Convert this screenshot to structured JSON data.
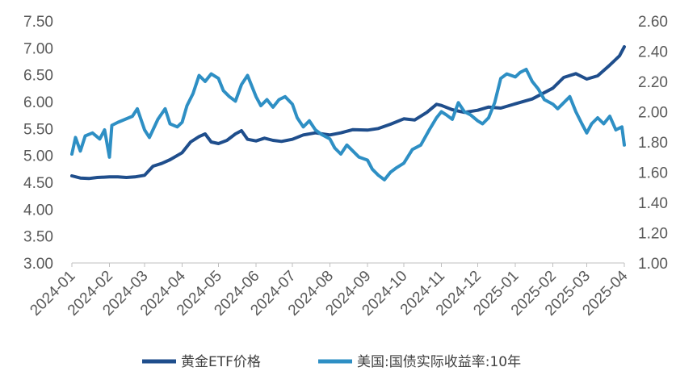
{
  "chart_data": {
    "type": "line",
    "title": "",
    "x": [
      "2024-01",
      "2024-02",
      "2024-03",
      "2024-04",
      "2024-05",
      "2024-06",
      "2024-07",
      "2024-08",
      "2024-09",
      "2024-10",
      "2024-11",
      "2024-12",
      "2025-01",
      "2025-02",
      "2025-03",
      "2025-04"
    ],
    "ylim_left": [
      3.0,
      7.5
    ],
    "yticks_left": [
      "3.00",
      "3.50",
      "4.00",
      "4.50",
      "5.00",
      "5.50",
      "6.00",
      "6.50",
      "7.00",
      "7.50"
    ],
    "ylim_right": [
      1.0,
      2.6
    ],
    "yticks_right": [
      "1.00",
      "1.20",
      "1.40",
      "1.60",
      "1.80",
      "2.00",
      "2.20",
      "2.40",
      "2.60"
    ],
    "grid": false,
    "legend_position": "bottom",
    "series": [
      {
        "name": "黄金ETF价格",
        "axis": "left",
        "color": "#1F4E8C",
        "points": [
          [
            "2024-01",
            4.62
          ],
          [
            "2024-01-08",
            4.58
          ],
          [
            "2024-01-15",
            4.57
          ],
          [
            "2024-01-22",
            4.59
          ],
          [
            "2024-02",
            4.6
          ],
          [
            "2024-02-08",
            4.6
          ],
          [
            "2024-02-15",
            4.59
          ],
          [
            "2024-02-22",
            4.6
          ],
          [
            "2024-03",
            4.63
          ],
          [
            "2024-03-08",
            4.8
          ],
          [
            "2024-03-15",
            4.85
          ],
          [
            "2024-03-22",
            4.92
          ],
          [
            "2024-04",
            5.05
          ],
          [
            "2024-04-08",
            5.25
          ],
          [
            "2024-04-15",
            5.35
          ],
          [
            "2024-04-20",
            5.4
          ],
          [
            "2024-04-25",
            5.25
          ],
          [
            "2024-05",
            5.22
          ],
          [
            "2024-05-08",
            5.28
          ],
          [
            "2024-05-15",
            5.4
          ],
          [
            "2024-05-20",
            5.46
          ],
          [
            "2024-05-25",
            5.3
          ],
          [
            "2024-06",
            5.27
          ],
          [
            "2024-06-08",
            5.32
          ],
          [
            "2024-06-15",
            5.28
          ],
          [
            "2024-06-22",
            5.26
          ],
          [
            "2024-07",
            5.3
          ],
          [
            "2024-07-10",
            5.38
          ],
          [
            "2024-07-20",
            5.42
          ],
          [
            "2024-08",
            5.38
          ],
          [
            "2024-08-10",
            5.42
          ],
          [
            "2024-08-20",
            5.48
          ],
          [
            "2024-09",
            5.47
          ],
          [
            "2024-09-10",
            5.5
          ],
          [
            "2024-09-20",
            5.58
          ],
          [
            "2024-10",
            5.68
          ],
          [
            "2024-10-10",
            5.66
          ],
          [
            "2024-10-20",
            5.8
          ],
          [
            "2024-10-28",
            5.95
          ],
          [
            "2024-11",
            5.93
          ],
          [
            "2024-11-10",
            5.85
          ],
          [
            "2024-11-20",
            5.8
          ],
          [
            "2024-12",
            5.84
          ],
          [
            "2024-12-10",
            5.9
          ],
          [
            "2024-12-20",
            5.88
          ],
          [
            "2025-01",
            5.96
          ],
          [
            "2025-01-15",
            6.05
          ],
          [
            "2025-02",
            6.25
          ],
          [
            "2025-02-10",
            6.45
          ],
          [
            "2025-02-20",
            6.52
          ],
          [
            "2025-03",
            6.42
          ],
          [
            "2025-03-10",
            6.48
          ],
          [
            "2025-03-20",
            6.68
          ],
          [
            "2025-03-28",
            6.85
          ],
          [
            "2025-04",
            7.02
          ]
        ]
      },
      {
        "name": "美国:国债实际收益率:10年",
        "axis": "right",
        "color": "#2E8FC4",
        "points": [
          [
            "2024-01",
            1.72
          ],
          [
            "2024-01-04",
            1.83
          ],
          [
            "2024-01-08",
            1.74
          ],
          [
            "2024-01-12",
            1.84
          ],
          [
            "2024-01-18",
            1.86
          ],
          [
            "2024-01-24",
            1.82
          ],
          [
            "2024-01-28",
            1.88
          ],
          [
            "2024-02",
            1.7
          ],
          [
            "2024-02-03",
            1.91
          ],
          [
            "2024-02-08",
            1.93
          ],
          [
            "2024-02-14",
            1.95
          ],
          [
            "2024-02-20",
            1.97
          ],
          [
            "2024-02-24",
            2.02
          ],
          [
            "2024-03",
            1.88
          ],
          [
            "2024-03-05",
            1.83
          ],
          [
            "2024-03-12",
            1.95
          ],
          [
            "2024-03-18",
            2.02
          ],
          [
            "2024-03-22",
            1.92
          ],
          [
            "2024-03-28",
            1.9
          ],
          [
            "2024-04",
            1.93
          ],
          [
            "2024-04-05",
            2.04
          ],
          [
            "2024-04-10",
            2.12
          ],
          [
            "2024-04-15",
            2.24
          ],
          [
            "2024-04-20",
            2.2
          ],
          [
            "2024-04-25",
            2.25
          ],
          [
            "2024-05",
            2.22
          ],
          [
            "2024-05-05",
            2.14
          ],
          [
            "2024-05-10",
            2.1
          ],
          [
            "2024-05-15",
            2.07
          ],
          [
            "2024-05-20",
            2.18
          ],
          [
            "2024-05-25",
            2.24
          ],
          [
            "2024-06",
            2.1
          ],
          [
            "2024-06-05",
            2.04
          ],
          [
            "2024-06-10",
            2.08
          ],
          [
            "2024-06-15",
            2.03
          ],
          [
            "2024-06-20",
            2.08
          ],
          [
            "2024-06-25",
            2.1
          ],
          [
            "2024-07",
            2.05
          ],
          [
            "2024-07-05",
            1.96
          ],
          [
            "2024-07-10",
            1.9
          ],
          [
            "2024-07-15",
            1.94
          ],
          [
            "2024-07-20",
            1.88
          ],
          [
            "2024-07-25",
            1.85
          ],
          [
            "2024-08",
            1.82
          ],
          [
            "2024-08-05",
            1.76
          ],
          [
            "2024-08-10",
            1.72
          ],
          [
            "2024-08-15",
            1.78
          ],
          [
            "2024-08-20",
            1.74
          ],
          [
            "2024-08-25",
            1.7
          ],
          [
            "2024-09",
            1.68
          ],
          [
            "2024-09-05",
            1.62
          ],
          [
            "2024-09-10",
            1.58
          ],
          [
            "2024-09-15",
            1.55
          ],
          [
            "2024-09-20",
            1.6
          ],
          [
            "2024-09-25",
            1.63
          ],
          [
            "2024-10",
            1.66
          ],
          [
            "2024-10-08",
            1.75
          ],
          [
            "2024-10-15",
            1.78
          ],
          [
            "2024-10-22",
            1.88
          ],
          [
            "2024-10-28",
            1.96
          ],
          [
            "2024-11",
            2.0
          ],
          [
            "2024-11-05",
            1.98
          ],
          [
            "2024-11-10",
            1.95
          ],
          [
            "2024-11-15",
            2.06
          ],
          [
            "2024-11-20",
            2.0
          ],
          [
            "2024-11-25",
            1.98
          ],
          [
            "2024-12",
            1.94
          ],
          [
            "2024-12-05",
            1.92
          ],
          [
            "2024-12-10",
            1.96
          ],
          [
            "2024-12-15",
            2.06
          ],
          [
            "2024-12-20",
            2.22
          ],
          [
            "2024-12-25",
            2.25
          ],
          [
            "2025-01",
            2.23
          ],
          [
            "2025-01-05",
            2.26
          ],
          [
            "2025-01-10",
            2.28
          ],
          [
            "2025-01-15",
            2.2
          ],
          [
            "2025-01-20",
            2.15
          ],
          [
            "2025-01-25",
            2.08
          ],
          [
            "2025-02",
            2.05
          ],
          [
            "2025-02-05",
            2.02
          ],
          [
            "2025-02-10",
            2.06
          ],
          [
            "2025-02-15",
            2.1
          ],
          [
            "2025-02-20",
            2.0
          ],
          [
            "2025-02-25",
            1.92
          ],
          [
            "2025-03",
            1.86
          ],
          [
            "2025-03-05",
            1.92
          ],
          [
            "2025-03-10",
            1.96
          ],
          [
            "2025-03-15",
            1.92
          ],
          [
            "2025-03-20",
            1.97
          ],
          [
            "2025-03-25",
            1.88
          ],
          [
            "2025-03-30",
            1.9
          ],
          [
            "2025-04",
            1.78
          ]
        ]
      }
    ]
  }
}
